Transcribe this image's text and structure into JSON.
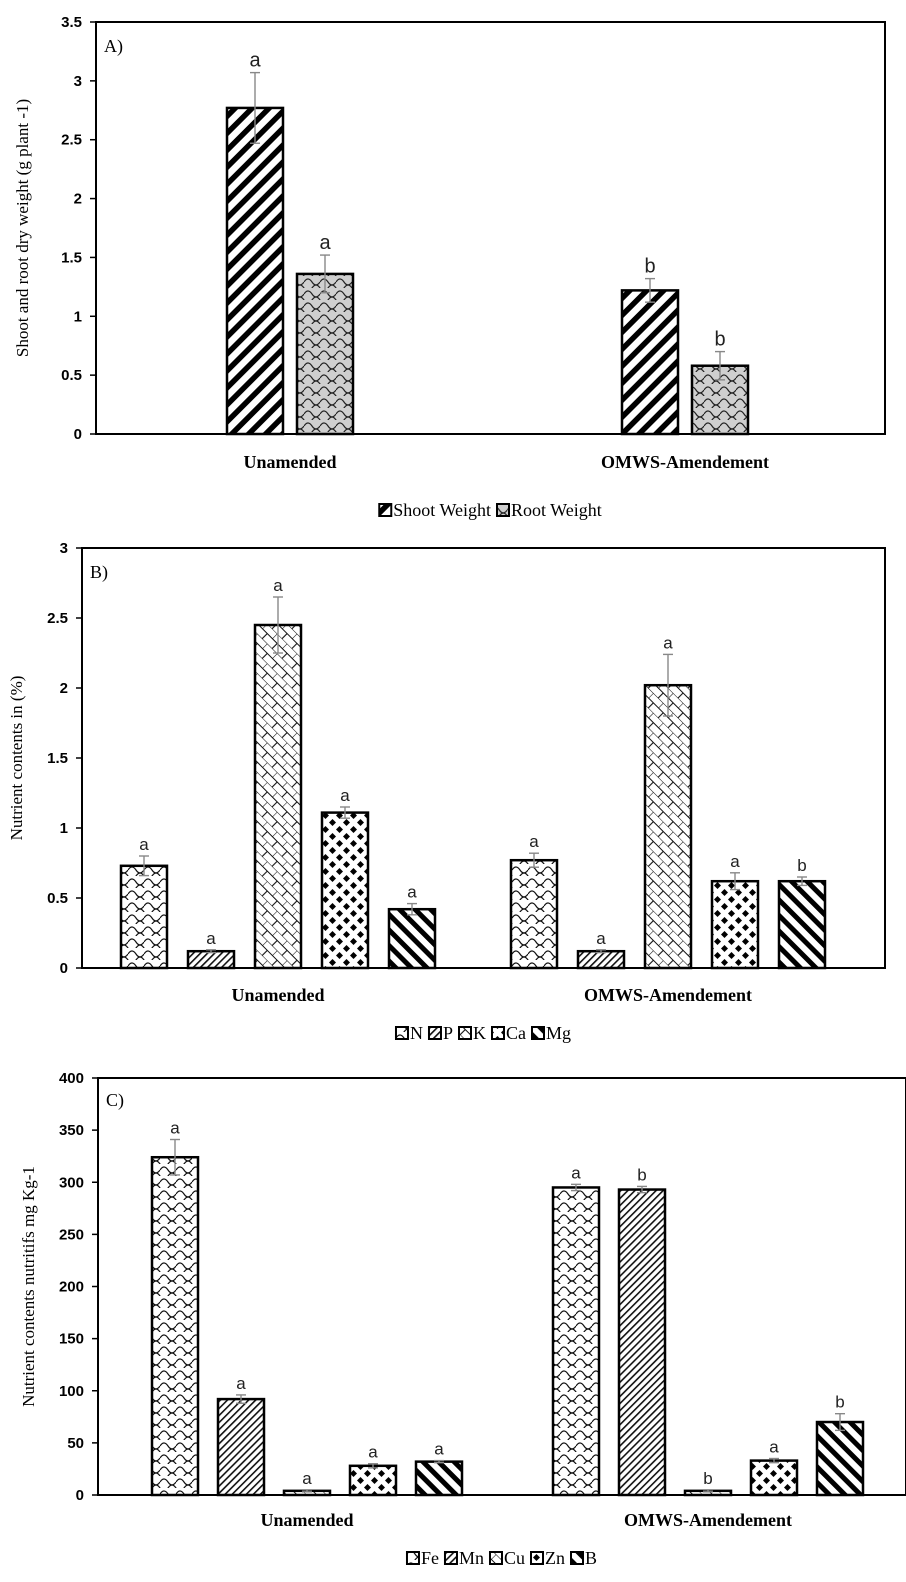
{
  "chart_data": [
    {
      "type": "bar",
      "panel_label": "A)",
      "ylabel": "Shoot and  root dry  weight (g plant -1)",
      "ylim": [
        0,
        3.5
      ],
      "yticks": [
        "0",
        "0.5",
        "1",
        "1.5",
        "2",
        "2.5",
        "3",
        "3.5"
      ],
      "categories": [
        "Unamended",
        "OMWS-Amendement"
      ],
      "series": [
        {
          "name": "Shoot Weight",
          "values": [
            2.77,
            1.22
          ],
          "errors": [
            0.3,
            0.1
          ],
          "letters": [
            "a",
            "b"
          ],
          "pattern": "stripe-bold"
        },
        {
          "name": "Root Weight",
          "values": [
            1.36,
            0.58
          ],
          "errors": [
            0.16,
            0.12
          ],
          "letters": [
            "a",
            "b"
          ],
          "pattern": "scallop-gray"
        }
      ],
      "legend": "bottom"
    },
    {
      "type": "bar",
      "panel_label": "B)",
      "ylabel": "Nutrient  contents in (%)",
      "ylim": [
        0,
        3
      ],
      "yticks": [
        "0",
        "0.5",
        "1",
        "1.5",
        "2",
        "2.5",
        "3"
      ],
      "categories": [
        "Unamended",
        "OMWS-Amendement"
      ],
      "series": [
        {
          "name": "N",
          "values": [
            0.73,
            0.77
          ],
          "errors": [
            0.07,
            0.05
          ],
          "letters": [
            "a",
            "a"
          ],
          "pattern": "scallop"
        },
        {
          "name": "P",
          "values": [
            0.12,
            0.12
          ],
          "errors": [
            0.01,
            0.01
          ],
          "letters": [
            "a",
            "a"
          ],
          "pattern": "fine-stripe"
        },
        {
          "name": "K",
          "values": [
            2.45,
            2.02
          ],
          "errors": [
            0.2,
            0.22
          ],
          "letters": [
            "a",
            "a"
          ],
          "pattern": "brick"
        },
        {
          "name": "Ca",
          "values": [
            1.11,
            0.62
          ],
          "errors": [
            0.04,
            0.06
          ],
          "letters": [
            "a",
            "a"
          ],
          "pattern": "dots"
        },
        {
          "name": "Mg",
          "values": [
            0.42,
            0.62
          ],
          "errors": [
            0.04,
            0.03
          ],
          "letters": [
            "a",
            "b"
          ],
          "pattern": "stripe-back"
        }
      ],
      "legend": "bottom"
    },
    {
      "type": "bar",
      "panel_label": "C)",
      "ylabel": "Nutrient contents nutritifs mg Kg-1",
      "ylim": [
        0,
        400
      ],
      "yticks": [
        "0",
        "50",
        "100",
        "150",
        "200",
        "250",
        "300",
        "350",
        "400"
      ],
      "categories": [
        "Unamended",
        "OMWS-Amendement"
      ],
      "series": [
        {
          "name": "Fe",
          "values": [
            324,
            295
          ],
          "errors": [
            17,
            3
          ],
          "letters": [
            "a",
            "a"
          ],
          "pattern": "scallop"
        },
        {
          "name": "Mn",
          "values": [
            92,
            293
          ],
          "errors": [
            4,
            3
          ],
          "letters": [
            "a",
            "b"
          ],
          "pattern": "fine-stripe"
        },
        {
          "name": "Cu",
          "values": [
            4,
            4
          ],
          "errors": [
            1,
            1
          ],
          "letters": [
            "a",
            "b"
          ],
          "pattern": "brick"
        },
        {
          "name": "Zn",
          "values": [
            28,
            33
          ],
          "errors": [
            2,
            2
          ],
          "letters": [
            "a",
            "a"
          ],
          "pattern": "dots"
        },
        {
          "name": "B",
          "values": [
            32,
            70
          ],
          "errors": [
            1,
            8
          ],
          "letters": [
            "a",
            "b"
          ],
          "pattern": "stripe-back"
        }
      ],
      "legend": "bottom"
    }
  ]
}
